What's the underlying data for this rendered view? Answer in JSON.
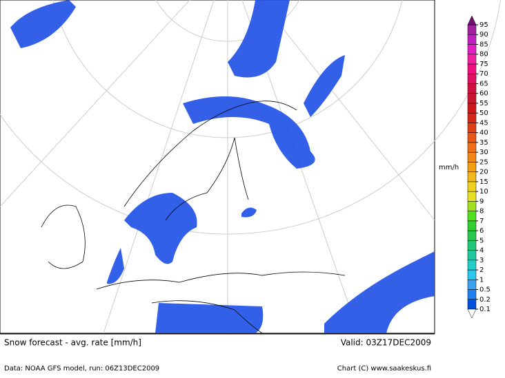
{
  "header": {
    "unit": "mm/h"
  },
  "legend": {
    "levels": [
      0.1,
      0.2,
      0.5,
      1,
      2,
      3,
      4,
      5,
      6,
      7,
      8,
      9,
      10,
      15,
      20,
      25,
      30,
      35,
      40,
      45,
      50,
      55,
      60,
      65,
      70,
      75,
      80,
      85,
      90,
      95
    ],
    "colors": [
      "#0050e0",
      "#1e7ff0",
      "#3ca0f0",
      "#28c8f0",
      "#20d0c8",
      "#20c8a0",
      "#20c878",
      "#28c850",
      "#30d030",
      "#50e020",
      "#a0e020",
      "#e8e020",
      "#f0d020",
      "#f0b818",
      "#f0a010",
      "#f08818",
      "#f07018",
      "#e85818",
      "#e04018",
      "#d82818",
      "#d01818",
      "#c81830",
      "#d01040",
      "#e01060",
      "#f01080",
      "#f020a0",
      "#e020c0",
      "#c020c0",
      "#a020a0"
    ],
    "over_color": "#701070"
  },
  "footer": {
    "title": "Snow forecast - avg. rate [mm/h]",
    "valid": "Valid: 03Z17DEC2009",
    "source": "Data: NOAA GFS model, run: 06Z13DEC2009",
    "credit": "Chart (C) www.saakeskus.fi"
  }
}
